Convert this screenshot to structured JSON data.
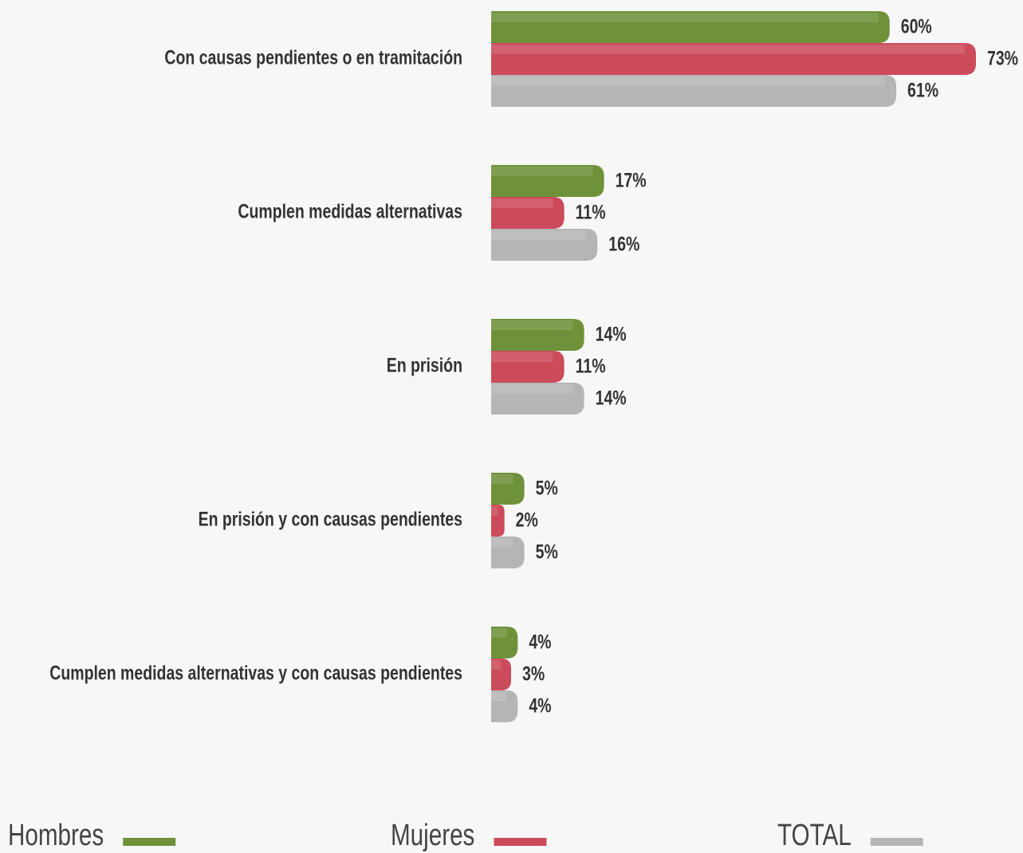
{
  "chart_data": {
    "type": "bar",
    "orientation": "horizontal",
    "categories": [
      "Con causas pendientes o en tramitación",
      "Cumplen medidas alternativas",
      "En prisión",
      "En prisión y con causas pendientes",
      "Cumplen medidas alternativas y con causas pendientes"
    ],
    "series": [
      {
        "name": "Hombres",
        "color": "#6e9139",
        "values": [
          60,
          17,
          14,
          5,
          4
        ],
        "value_labels": [
          "60%",
          "17%",
          "14%",
          "5%",
          "4%"
        ]
      },
      {
        "name": "Mujeres",
        "color": "#cc4b5b",
        "values": [
          73,
          11,
          11,
          2,
          3
        ],
        "value_labels": [
          "73%",
          "11%",
          "11%",
          "2%",
          "3%"
        ]
      },
      {
        "name": "TOTAL",
        "color": "#b5b5b5",
        "values": [
          61,
          16,
          14,
          5,
          4
        ],
        "value_labels": [
          "61%",
          "16%",
          "14%",
          "5%",
          "4%"
        ]
      }
    ],
    "legend": "bottom"
  }
}
